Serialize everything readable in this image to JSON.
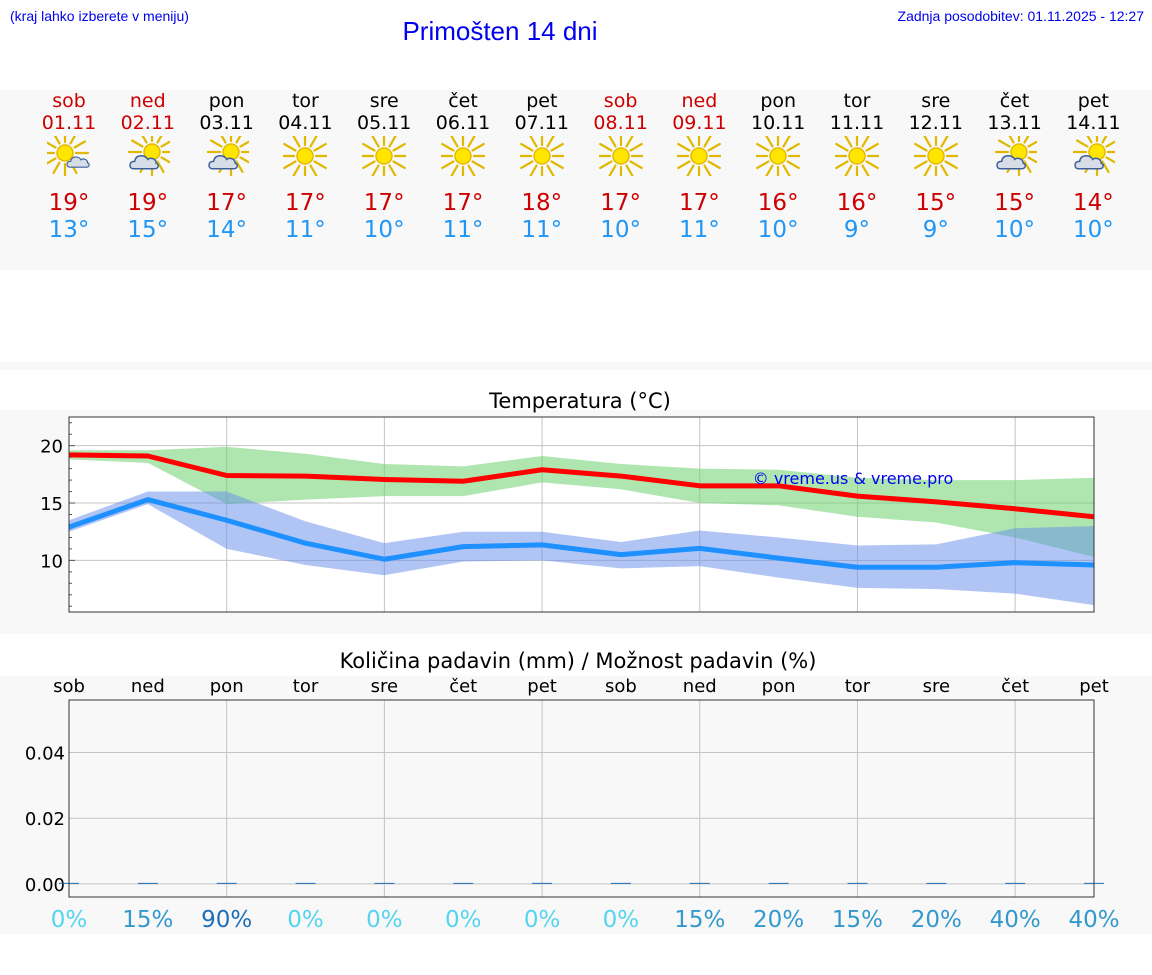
{
  "header": {
    "hint": "(kraj lahko izberete v meniju)",
    "title": "Primošten 14 dni",
    "updated": "Zadnja posodobitev: 01.11.2025 - 12:27"
  },
  "colors": {
    "max": "#cc0000",
    "min": "#2196f3",
    "link": "#0000ee"
  },
  "days": [
    {
      "name": "sob",
      "date": "01.11",
      "weekend": true,
      "icon": "sun-light-rain-icon",
      "max": "19°",
      "min": "13°"
    },
    {
      "name": "ned",
      "date": "02.11",
      "weekend": true,
      "icon": "partly-cloudy-icon",
      "max": "19°",
      "min": "15°"
    },
    {
      "name": "pon",
      "date": "03.11",
      "weekend": false,
      "icon": "partly-cloudy-icon",
      "max": "17°",
      "min": "14°"
    },
    {
      "name": "tor",
      "date": "04.11",
      "weekend": false,
      "icon": "sun-icon",
      "max": "17°",
      "min": "11°"
    },
    {
      "name": "sre",
      "date": "05.11",
      "weekend": false,
      "icon": "sun-icon",
      "max": "17°",
      "min": "10°"
    },
    {
      "name": "čet",
      "date": "06.11",
      "weekend": false,
      "icon": "sun-icon",
      "max": "17°",
      "min": "11°"
    },
    {
      "name": "pet",
      "date": "07.11",
      "weekend": false,
      "icon": "sun-icon",
      "max": "18°",
      "min": "11°"
    },
    {
      "name": "sob",
      "date": "08.11",
      "weekend": true,
      "icon": "sun-icon",
      "max": "17°",
      "min": "10°"
    },
    {
      "name": "ned",
      "date": "09.11",
      "weekend": true,
      "icon": "sun-icon",
      "max": "17°",
      "min": "11°"
    },
    {
      "name": "pon",
      "date": "10.11",
      "weekend": false,
      "icon": "sun-icon",
      "max": "16°",
      "min": "10°"
    },
    {
      "name": "tor",
      "date": "11.11",
      "weekend": false,
      "icon": "sun-icon",
      "max": "16°",
      "min": "9°"
    },
    {
      "name": "sre",
      "date": "12.11",
      "weekend": false,
      "icon": "sun-icon",
      "max": "15°",
      "min": "9°"
    },
    {
      "name": "čet",
      "date": "13.11",
      "weekend": false,
      "icon": "partly-cloudy-icon",
      "max": "15°",
      "min": "10°"
    },
    {
      "name": "pet",
      "date": "14.11",
      "weekend": false,
      "icon": "partly-cloudy-icon",
      "max": "14°",
      "min": "10°"
    }
  ],
  "chart_data": [
    {
      "type": "line",
      "title": "Temperatura (°C)",
      "xlabel": "",
      "ylabel": "",
      "x": [
        0,
        1,
        2,
        3,
        4,
        5,
        6,
        7,
        8,
        9,
        10,
        11,
        12,
        13
      ],
      "ylim": [
        5.5,
        22.5
      ],
      "yticks": [
        10,
        15,
        20
      ],
      "grid": true,
      "watermark": "© vreme.us & vreme.pro",
      "series": [
        {
          "name": "max",
          "color": "#ff0000",
          "values": [
            19.2,
            19.1,
            17.4,
            17.35,
            17.05,
            16.9,
            17.9,
            17.35,
            16.5,
            16.5,
            15.6,
            15.1,
            14.5,
            13.8
          ],
          "band_lo": [
            18.8,
            18.5,
            14.9,
            15.3,
            15.6,
            15.6,
            16.8,
            16.2,
            15.0,
            14.8,
            13.8,
            13.3,
            12.0,
            10.3
          ],
          "band_hi": [
            19.6,
            19.6,
            19.9,
            19.3,
            18.4,
            18.2,
            19.1,
            18.4,
            18.0,
            17.9,
            17.2,
            17.0,
            17.0,
            17.2
          ]
        },
        {
          "name": "min",
          "color": "#1e90ff",
          "values": [
            12.9,
            15.3,
            13.5,
            11.5,
            10.1,
            11.2,
            11.35,
            10.5,
            11.05,
            10.2,
            9.4,
            9.4,
            9.8,
            9.6
          ],
          "band_lo": [
            12.5,
            14.9,
            11.0,
            9.6,
            8.7,
            9.9,
            10.0,
            9.3,
            9.5,
            8.5,
            7.6,
            7.5,
            7.1,
            6.1
          ],
          "band_hi": [
            13.5,
            16.0,
            16.0,
            13.4,
            11.5,
            12.5,
            12.5,
            11.6,
            12.6,
            12.0,
            11.3,
            11.4,
            12.8,
            13.0
          ]
        }
      ]
    },
    {
      "type": "bar",
      "title": "Količina padavin (mm) / Možnost padavin (%)",
      "xlabel": "",
      "ylabel": "",
      "categories": [
        "sob",
        "ned",
        "pon",
        "tor",
        "sre",
        "čet",
        "pet",
        "sob",
        "ned",
        "pon",
        "tor",
        "sre",
        "čet",
        "pet"
      ],
      "values": [
        0,
        0,
        0,
        0,
        0,
        0,
        0,
        0,
        0,
        0,
        0,
        0,
        0,
        0
      ],
      "ylim": [
        -0.004,
        0.056
      ],
      "yticks": [
        0.0,
        0.02,
        0.04
      ],
      "ytick_labels": [
        "0.00",
        "0.02",
        "0.04"
      ],
      "grid": true,
      "probability_labels": [
        "0%",
        "15%",
        "90%",
        "0%",
        "0%",
        "0%",
        "0%",
        "0%",
        "15%",
        "20%",
        "15%",
        "20%",
        "40%",
        "40%"
      ],
      "probability_colors": [
        "#55d4f0",
        "#3399cc",
        "#1e6fb8",
        "#55d4f0",
        "#55d4f0",
        "#55d4f0",
        "#55d4f0",
        "#55d4f0",
        "#3399cc",
        "#3399cc",
        "#3399cc",
        "#3399cc",
        "#3399cc",
        "#3399cc"
      ]
    }
  ]
}
